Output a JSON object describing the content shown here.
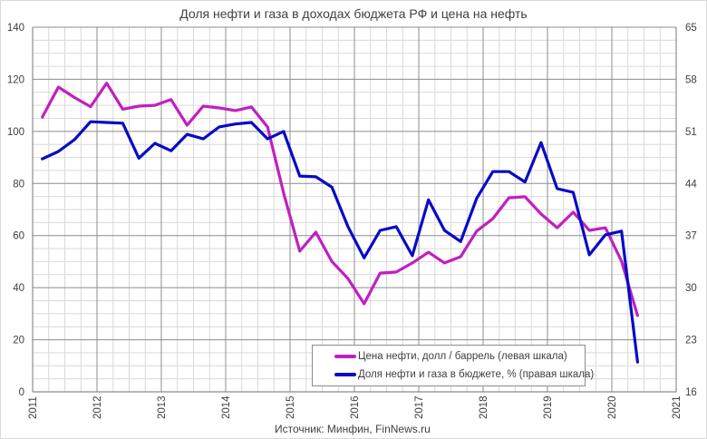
{
  "title": "Доля нефти и газа в доходах бюджета РФ и цена на нефть",
  "source": "Источник: Минфин, FinNews.ru",
  "colors": {
    "oil_price": "#c020c0",
    "share": "#0a0ac8",
    "grid_major": "#8c8c8c",
    "grid_minor": "#d9d9d9",
    "text": "#404040"
  },
  "legend": {
    "items": [
      {
        "label": "Цена нефти, долл / баррель (левая шкала)",
        "color": "#c020c0"
      },
      {
        "label": "Доля нефти и газа в бюджете, % (правая шкала)",
        "color": "#0a0ac8"
      }
    ]
  },
  "chart_data": {
    "type": "line",
    "title": "Доля нефти и газа в доходах бюджета РФ и цена на нефть",
    "xlabel": "",
    "ylabel": "",
    "x_ticks": [
      "2011",
      "2012",
      "2013",
      "2014",
      "2015",
      "2016",
      "2017",
      "2018",
      "2019",
      "2020",
      "2021"
    ],
    "xlim": [
      2011,
      2021
    ],
    "left_axis": {
      "ticks": [
        0,
        20,
        40,
        60,
        80,
        100,
        120,
        140
      ],
      "ylim": [
        0,
        140
      ]
    },
    "right_axis": {
      "ticks": [
        16,
        23,
        30,
        37,
        44,
        51,
        58,
        65
      ],
      "ylim": [
        16,
        65
      ]
    },
    "grid": true,
    "legend_position": "bottom-center inside plot",
    "x": [
      2011.15,
      2011.4,
      2011.65,
      2011.9,
      2012.15,
      2012.4,
      2012.65,
      2012.9,
      2013.15,
      2013.4,
      2013.65,
      2013.9,
      2014.15,
      2014.4,
      2014.65,
      2014.9,
      2015.15,
      2015.4,
      2015.65,
      2015.9,
      2016.15,
      2016.4,
      2016.65,
      2016.9,
      2017.15,
      2017.4,
      2017.65,
      2017.9,
      2018.15,
      2018.4,
      2018.65,
      2018.9,
      2019.15,
      2019.4,
      2019.65,
      2019.9,
      2020.15,
      2020.4
    ],
    "series": [
      {
        "name": "Цена нефти, долл / баррель (левая шкала)",
        "axis": "left",
        "color": "#c020c0",
        "values": [
          105.5,
          117,
          113,
          109.5,
          118.5,
          108.5,
          109.7,
          110,
          112.2,
          102.4,
          109.7,
          109,
          108,
          109.4,
          101.7,
          76.3,
          54,
          61.3,
          50,
          43.5,
          33.8,
          45.6,
          46,
          49.5,
          53.6,
          49.5,
          51.9,
          61.7,
          66.5,
          74.5,
          74.9,
          68.3,
          63,
          69,
          62,
          63,
          50.2,
          29.3
        ]
      },
      {
        "name": "Доля нефти и газа в бюджете, % (правая шкала)",
        "axis": "right",
        "color": "#0a0ac8",
        "values": [
          47.3,
          48.3,
          49.9,
          52.3,
          52.2,
          52.1,
          47.4,
          49.4,
          48.4,
          50.6,
          50,
          51.6,
          52,
          52.2,
          50,
          51,
          45,
          44.9,
          43.5,
          38.2,
          34,
          37.7,
          38.2,
          34.3,
          41.8,
          37.7,
          36.2,
          42,
          45.6,
          45.6,
          44.2,
          49.5,
          43.3,
          42.8,
          34.4,
          37.1,
          37.6,
          20
        ]
      }
    ]
  }
}
